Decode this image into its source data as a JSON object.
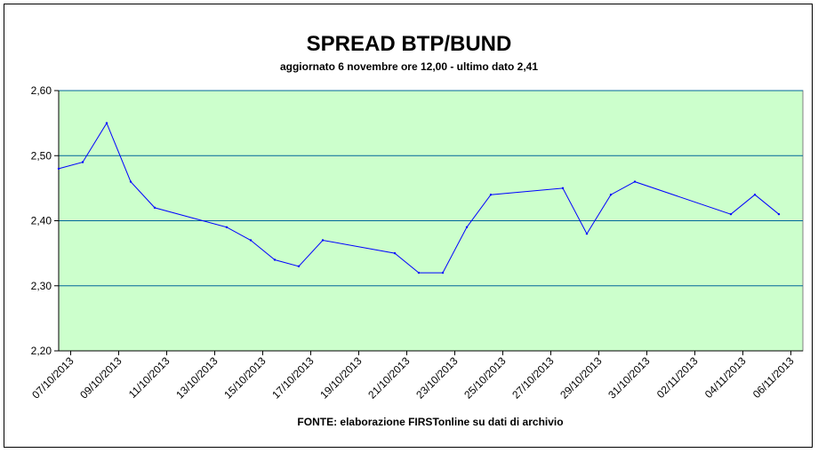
{
  "chart_data": {
    "type": "line",
    "title": "SPREAD BTP/BUND",
    "subtitle": "aggiornato 6 novembre ore 12,00 - ultimo dato 2,41",
    "source_note": "FONTE: elaborazione FIRSTonline su dati di archivio",
    "xlabel": "",
    "ylabel": "",
    "ylim": [
      2.2,
      2.6
    ],
    "yticks": [
      "2,60",
      "2,50",
      "2,40",
      "2,30",
      "2,20"
    ],
    "ytick_values": [
      2.6,
      2.5,
      2.4,
      2.3,
      2.2
    ],
    "xlim": [
      "2013-10-07",
      "2013-11-07"
    ],
    "xticks": [
      "07/10/2013",
      "09/10/2013",
      "11/10/2013",
      "13/10/2013",
      "15/10/2013",
      "17/10/2013",
      "19/10/2013",
      "21/10/2013",
      "23/10/2013",
      "25/10/2013",
      "27/10/2013",
      "29/10/2013",
      "31/10/2013",
      "02/11/2013",
      "04/11/2013",
      "06/11/2013"
    ],
    "grid": true,
    "colors": {
      "plot_background": "#ccffcc",
      "line": "#0000ff",
      "grid": "#006699"
    },
    "series": [
      {
        "x": [
          "2013-10-07",
          "2013-10-08",
          "2013-10-09",
          "2013-10-10",
          "2013-10-11",
          "2013-10-14",
          "2013-10-15",
          "2013-10-16",
          "2013-10-17",
          "2013-10-18",
          "2013-10-21",
          "2013-10-22",
          "2013-10-23",
          "2013-10-24",
          "2013-10-25",
          "2013-10-28",
          "2013-10-29",
          "2013-10-30",
          "2013-10-31",
          "2013-11-04",
          "2013-11-05",
          "2013-11-06"
        ],
        "values": [
          2.48,
          2.49,
          2.55,
          2.46,
          2.42,
          2.39,
          2.37,
          2.34,
          2.33,
          2.37,
          2.35,
          2.32,
          2.32,
          2.39,
          2.44,
          2.45,
          2.38,
          2.44,
          2.46,
          2.41,
          2.44,
          2.41
        ]
      }
    ]
  }
}
